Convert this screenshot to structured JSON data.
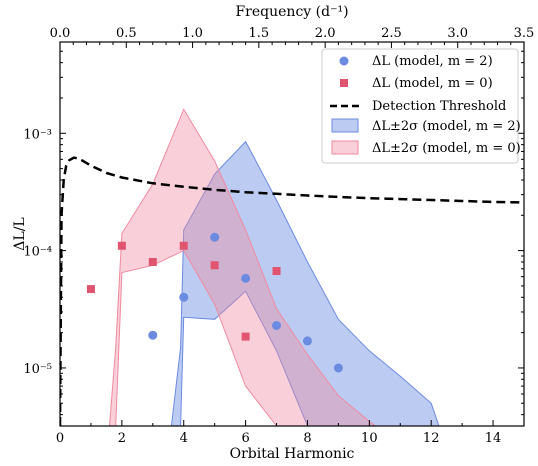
{
  "chart_data": {
    "type": "scatter",
    "xlabel": "Orbital Harmonic",
    "ylabel": "ΔL/L",
    "top_xlabel": "Frequency (d⁻¹)",
    "xlim": [
      0,
      15
    ],
    "ylim": [
      3.2e-06,
      0.006
    ],
    "yscale": "log",
    "top_xlim": [
      0,
      3.5
    ],
    "x_ticks": [
      0,
      2,
      4,
      6,
      8,
      10,
      12,
      14
    ],
    "top_x_ticks": [
      0.0,
      0.5,
      1.0,
      1.5,
      2.0,
      2.5,
      3.0,
      3.5
    ],
    "top_x_tick_labels": [
      "0.0",
      "0.5",
      "1.0",
      "1.5",
      "2.0",
      "2.5",
      "3.0",
      "3.5"
    ],
    "y_ticks": [
      1e-05,
      0.0001,
      0.001
    ],
    "y_tick_labels": [
      "10⁻⁵",
      "10⁻⁴",
      "10⁻³"
    ],
    "legend_placement": "upper-right",
    "series": [
      {
        "name": "ΔL (model, m = 2)",
        "kind": "points",
        "marker": "circle",
        "color": "#6b8be0",
        "x": [
          3,
          4,
          5,
          6,
          7,
          8,
          9
        ],
        "y": [
          1.9e-05,
          4e-05,
          0.00013,
          5.8e-05,
          2.3e-05,
          1.7e-05,
          1e-05
        ]
      },
      {
        "name": "ΔL (model, m = 0)",
        "kind": "points",
        "marker": "square",
        "color": "#e05470",
        "x": [
          1,
          2,
          3,
          4,
          5,
          6,
          7
        ],
        "y": [
          4.7e-05,
          0.00011,
          8e-05,
          0.00011,
          7.5e-05,
          1.85e-05,
          6.7e-05
        ]
      },
      {
        "name": "Detection Threshold",
        "kind": "line",
        "color": "#000000",
        "x": [
          0.0,
          0.05,
          0.12,
          0.2,
          0.3,
          0.45,
          0.6,
          0.8,
          1.0,
          1.5,
          2.0,
          3.0,
          4.0,
          5.0,
          6.0,
          7.0,
          8.0,
          9.0,
          10.0,
          11.0,
          12.0,
          13.0,
          14.0,
          15.0
        ],
        "y": [
          3.2e-06,
          0.0002,
          0.0004,
          0.00053,
          0.00059,
          0.00062,
          0.00061,
          0.00057,
          0.00053,
          0.00046,
          0.00042,
          0.000375,
          0.00035,
          0.00033,
          0.000315,
          0.000305,
          0.000295,
          0.000287,
          0.00028,
          0.000275,
          0.00027,
          0.000265,
          0.00026,
          0.000257
        ]
      },
      {
        "name": "ΔL±2σ (model, m = 2)",
        "kind": "band",
        "color": "#6b8be0",
        "x": [
          3.6,
          3.9,
          4.0,
          5.0,
          6.0,
          7.0,
          8.0,
          9.0,
          10.0,
          11.0,
          12.0,
          12.25
        ],
        "upper": [
          3.2e-06,
          1.5e-05,
          0.00015,
          0.00045,
          0.00085,
          0.00027,
          8e-05,
          2.6e-05,
          1.4e-05,
          8.5e-06,
          5e-06,
          3.2e-06
        ],
        "lower": [
          3.2e-06,
          3.2e-06,
          2.7e-05,
          2.6e-05,
          4.5e-05,
          1.4e-05,
          3.2e-06,
          3.2e-06,
          3.2e-06,
          3.2e-06,
          3.2e-06,
          3.2e-06
        ]
      },
      {
        "name": "ΔL±2σ (model, m = 0)",
        "kind": "band",
        "color": "#f08aa0",
        "x": [
          1.6,
          1.8,
          2.0,
          3.0,
          4.0,
          5.0,
          6.0,
          7.0,
          8.0,
          9.0,
          10.0,
          10.2
        ],
        "upper": [
          3.2e-06,
          1.5e-05,
          0.00014,
          0.00037,
          0.0016,
          0.00058,
          0.00015,
          3.2e-05,
          1.3e-05,
          5.8e-06,
          3.5e-06,
          3.2e-06
        ],
        "lower": [
          3.2e-06,
          3.2e-06,
          6.5e-05,
          7.5e-05,
          0.0001,
          3.5e-05,
          7e-06,
          3.2e-06,
          3.2e-06,
          3.2e-06,
          3.2e-06,
          3.2e-06
        ]
      }
    ]
  }
}
